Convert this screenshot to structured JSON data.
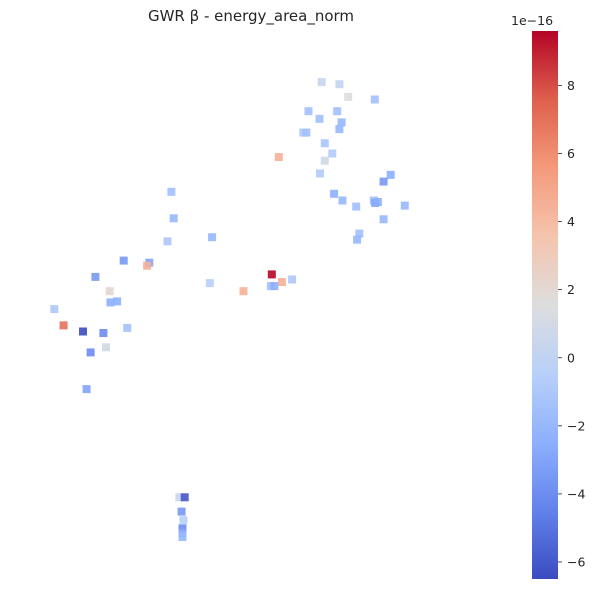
{
  "chart_data": {
    "type": "scatter",
    "title": "GWR β - energy_area_norm",
    "marker": "square",
    "marker_alpha": 0.9,
    "axes_visible": false,
    "grid": false,
    "xlim": [
      0,
      1
    ],
    "ylim": [
      0,
      1
    ],
    "colormap": "coolwarm",
    "colorbar": {
      "location": "right",
      "min": -6.5,
      "max": 9.6,
      "ticks": [
        -6,
        -4,
        -2,
        0,
        2,
        4,
        6,
        8
      ],
      "tick_labels": [
        "−6",
        "−4",
        "−2",
        "0",
        "2",
        "4",
        "6",
        "8"
      ],
      "scale_label": "1e−16",
      "scale": 1e-16
    },
    "points": [
      {
        "x": 0.66,
        "y": 0.937,
        "value": 0.3
      },
      {
        "x": 0.7,
        "y": 0.933,
        "value": 0.1
      },
      {
        "x": 0.72,
        "y": 0.908,
        "value": 1.5
      },
      {
        "x": 0.78,
        "y": 0.903,
        "value": -1.5
      },
      {
        "x": 0.63,
        "y": 0.88,
        "value": -1.5
      },
      {
        "x": 0.695,
        "y": 0.88,
        "value": -1.5
      },
      {
        "x": 0.655,
        "y": 0.865,
        "value": -1.5
      },
      {
        "x": 0.705,
        "y": 0.858,
        "value": -2.0
      },
      {
        "x": 0.7,
        "y": 0.845,
        "value": -2.0
      },
      {
        "x": 0.618,
        "y": 0.838,
        "value": -0.8
      },
      {
        "x": 0.625,
        "y": 0.838,
        "value": -1.5
      },
      {
        "x": 0.667,
        "y": 0.817,
        "value": -1.2
      },
      {
        "x": 0.684,
        "y": 0.797,
        "value": -0.8
      },
      {
        "x": 0.563,
        "y": 0.79,
        "value": 4.5
      },
      {
        "x": 0.667,
        "y": 0.783,
        "value": 0.8
      },
      {
        "x": 0.656,
        "y": 0.758,
        "value": -0.8
      },
      {
        "x": 0.816,
        "y": 0.755,
        "value": -2.5
      },
      {
        "x": 0.8,
        "y": 0.742,
        "value": -3.5
      },
      {
        "x": 0.688,
        "y": 0.718,
        "value": -2.5
      },
      {
        "x": 0.707,
        "y": 0.705,
        "value": -2.0
      },
      {
        "x": 0.738,
        "y": 0.693,
        "value": -1.5
      },
      {
        "x": 0.778,
        "y": 0.705,
        "value": -1.5
      },
      {
        "x": 0.781,
        "y": 0.7,
        "value": -3.0
      },
      {
        "x": 0.787,
        "y": 0.702,
        "value": -2.5
      },
      {
        "x": 0.848,
        "y": 0.695,
        "value": -2.0
      },
      {
        "x": 0.8,
        "y": 0.668,
        "value": -2.0
      },
      {
        "x": 0.745,
        "y": 0.64,
        "value": -1.5
      },
      {
        "x": 0.74,
        "y": 0.628,
        "value": -2.0
      },
      {
        "x": 0.32,
        "y": 0.722,
        "value": -1.5
      },
      {
        "x": 0.325,
        "y": 0.67,
        "value": -2.0
      },
      {
        "x": 0.311,
        "y": 0.625,
        "value": -1.0
      },
      {
        "x": 0.412,
        "y": 0.633,
        "value": -2.0
      },
      {
        "x": 0.212,
        "y": 0.587,
        "value": -3.5
      },
      {
        "x": 0.27,
        "y": 0.583,
        "value": -3.0
      },
      {
        "x": 0.265,
        "y": 0.577,
        "value": 4.5
      },
      {
        "x": 0.148,
        "y": 0.555,
        "value": -3.5
      },
      {
        "x": 0.547,
        "y": 0.56,
        "value": 9.6
      },
      {
        "x": 0.593,
        "y": 0.55,
        "value": -1.0
      },
      {
        "x": 0.57,
        "y": 0.545,
        "value": 4.5
      },
      {
        "x": 0.407,
        "y": 0.543,
        "value": -0.5
      },
      {
        "x": 0.545,
        "y": 0.537,
        "value": -1.5
      },
      {
        "x": 0.553,
        "y": 0.537,
        "value": -2.5
      },
      {
        "x": 0.483,
        "y": 0.527,
        "value": 4.5
      },
      {
        "x": 0.18,
        "y": 0.527,
        "value": 2.0
      },
      {
        "x": 0.182,
        "y": 0.505,
        "value": -2.5
      },
      {
        "x": 0.197,
        "y": 0.507,
        "value": -2.5
      },
      {
        "x": 0.055,
        "y": 0.492,
        "value": -1.0
      },
      {
        "x": 0.076,
        "y": 0.46,
        "value": 7.0
      },
      {
        "x": 0.12,
        "y": 0.448,
        "value": -6.5
      },
      {
        "x": 0.22,
        "y": 0.455,
        "value": -1.5
      },
      {
        "x": 0.166,
        "y": 0.445,
        "value": -4.0
      },
      {
        "x": 0.172,
        "y": 0.417,
        "value": 0.8
      },
      {
        "x": 0.137,
        "y": 0.407,
        "value": -4.0
      },
      {
        "x": 0.128,
        "y": 0.335,
        "value": -3.0
      },
      {
        "x": 0.338,
        "y": 0.123,
        "value": 0.5
      },
      {
        "x": 0.35,
        "y": 0.123,
        "value": -6.0
      },
      {
        "x": 0.343,
        "y": 0.095,
        "value": -3.5
      },
      {
        "x": 0.347,
        "y": 0.078,
        "value": -0.5
      },
      {
        "x": 0.345,
        "y": 0.062,
        "value": -4.0
      },
      {
        "x": 0.345,
        "y": 0.052,
        "value": -2.5
      },
      {
        "x": 0.345,
        "y": 0.045,
        "value": -2.0
      }
    ]
  }
}
